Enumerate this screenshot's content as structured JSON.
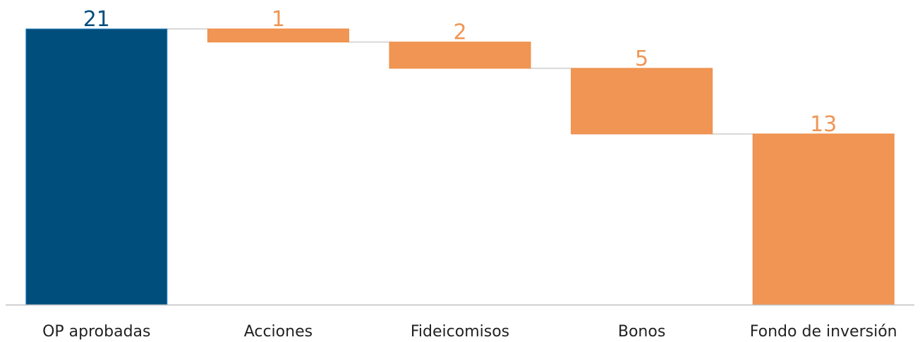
{
  "chart_data": {
    "type": "bar",
    "subtype": "waterfall",
    "categories": [
      "OP aprobadas",
      "Acciones",
      "Fideicomisos",
      "Bonos",
      "Fondo de inversión"
    ],
    "values": [
      21,
      1,
      2,
      5,
      13
    ],
    "bar_kind": [
      "total",
      "decrease",
      "decrease",
      "decrease",
      "decrease"
    ],
    "data_labels": [
      "21",
      "1",
      "2",
      "5",
      "13"
    ],
    "title": "",
    "xlabel": "",
    "ylabel": "",
    "ylim": [
      0,
      21
    ],
    "grid": false,
    "legend": "none",
    "connectors": true,
    "colors": {
      "total": "#004e7c",
      "decrease": "#f09553",
      "total_label": "#004e7c",
      "decrease_label": "#f09553",
      "axis": "#bfbfbf",
      "connector": "#d9d9d9"
    }
  }
}
